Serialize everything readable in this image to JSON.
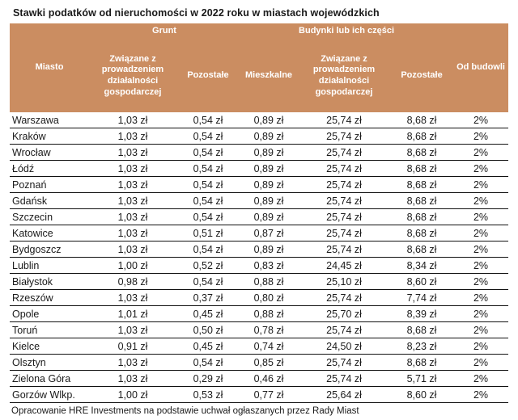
{
  "title": "Stawki podatków od nieruchomości w 2022 roku w miastach wojewódzkich",
  "footer": "Opracowanie HRE Investments na podstawie uchwał ogłaszanych przez Rady Miast",
  "colors": {
    "header_bg": "#cb8d61",
    "header_text": "#ffffff",
    "row_line": "#111111",
    "body_text": "#1a1a1a"
  },
  "table": {
    "group_headers": [
      "Grunt",
      "Budynki lub ich części"
    ],
    "columns": [
      "Miasto",
      "Związane z prowadzeniem działalności gospodarczej",
      "Pozostałe",
      "Mieszkalne",
      "Związane z prowadzeniem działalności gospodarczej",
      "Pozostałe",
      "Od budowli"
    ],
    "rows": [
      {
        "city": "Warszawa",
        "values": [
          "1,03 zł",
          "0,54 zł",
          "0,89 zł",
          "25,74 zł",
          "8,68 zł",
          "2%"
        ]
      },
      {
        "city": "Kraków",
        "values": [
          "1,03 zł",
          "0,54 zł",
          "0,89 zł",
          "25,74 zł",
          "8,68 zł",
          "2%"
        ]
      },
      {
        "city": "Wrocław",
        "values": [
          "1,03 zł",
          "0,54 zł",
          "0,89 zł",
          "25,74 zł",
          "8,68 zł",
          "2%"
        ]
      },
      {
        "city": "Łódź",
        "values": [
          "1,03 zł",
          "0,54 zł",
          "0,89 zł",
          "25,74 zł",
          "8,68 zł",
          "2%"
        ]
      },
      {
        "city": "Poznań",
        "values": [
          "1,03 zł",
          "0,54 zł",
          "0,89 zł",
          "25,74 zł",
          "8,68 zł",
          "2%"
        ]
      },
      {
        "city": "Gdańsk",
        "values": [
          "1,03 zł",
          "0,54 zł",
          "0,89 zł",
          "25,74 zł",
          "8,68 zł",
          "2%"
        ]
      },
      {
        "city": "Szczecin",
        "values": [
          "1,03 zł",
          "0,54 zł",
          "0,89 zł",
          "25,74 zł",
          "8,68 zł",
          "2%"
        ]
      },
      {
        "city": "Katowice",
        "values": [
          "1,03 zł",
          "0,51 zł",
          "0,87 zł",
          "25,74 zł",
          "8,68 zł",
          "2%"
        ]
      },
      {
        "city": "Bydgoszcz",
        "values": [
          "1,03 zł",
          "0,54 zł",
          "0,89 zł",
          "25,74 zł",
          "8,68 zł",
          "2%"
        ]
      },
      {
        "city": "Lublin",
        "values": [
          "1,00 zł",
          "0,52 zł",
          "0,83 zł",
          "24,45 zł",
          "8,34 zł",
          "2%"
        ]
      },
      {
        "city": "Białystok",
        "values": [
          "0,98 zł",
          "0,54 zł",
          "0,88 zł",
          "25,10 zł",
          "8,60 zł",
          "2%"
        ]
      },
      {
        "city": "Rzeszów",
        "values": [
          "1,03 zł",
          "0,37 zł",
          "0,80 zł",
          "25,74 zł",
          "7,74 zł",
          "2%"
        ]
      },
      {
        "city": "Opole",
        "values": [
          "1,01 zł",
          "0,45 zł",
          "0,88 zł",
          "25,70 zł",
          "8,39 zł",
          "2%"
        ]
      },
      {
        "city": "Toruń",
        "values": [
          "1,03 zł",
          "0,50 zł",
          "0,78 zł",
          "25,74 zł",
          "8,68 zł",
          "2%"
        ]
      },
      {
        "city": "Kielce",
        "values": [
          "0,91 zł",
          "0,45 zł",
          "0,74 zł",
          "24,50 zł",
          "8,23 zł",
          "2%"
        ]
      },
      {
        "city": "Olsztyn",
        "values": [
          "1,03 zł",
          "0,54 zł",
          "0,85 zł",
          "25,74 zł",
          "8,68 zł",
          "2%"
        ]
      },
      {
        "city": "Zielona Góra",
        "values": [
          "1,03 zł",
          "0,29 zł",
          "0,46 zł",
          "25,74 zł",
          "5,71 zł",
          "2%"
        ]
      },
      {
        "city": "Gorzów Wlkp.",
        "values": [
          "1,00 zł",
          "0,53 zł",
          "0,77 zł",
          "25,64 zł",
          "8,60 zł",
          "2%"
        ]
      }
    ]
  },
  "chart_data": {
    "type": "table",
    "title": "Stawki podatków od nieruchomości w 2022 roku w miastach wojewódzkich",
    "column_groups": [
      {
        "label": "",
        "span": 1
      },
      {
        "label": "Grunt",
        "span": 2
      },
      {
        "label": "Budynki lub ich części",
        "span": 3
      },
      {
        "label": "",
        "span": 1
      }
    ],
    "columns": [
      "Miasto",
      "Grunt – Związane z prowadzeniem działalności gospodarczej",
      "Grunt – Pozostałe",
      "Budynki – Mieszkalne",
      "Budynki – Związane z prowadzeniem działalności gospodarczej",
      "Budynki – Pozostałe",
      "Od budowli"
    ],
    "rows": [
      [
        "Warszawa",
        "1,03 zł",
        "0,54 zł",
        "0,89 zł",
        "25,74 zł",
        "8,68 zł",
        "2%"
      ],
      [
        "Kraków",
        "1,03 zł",
        "0,54 zł",
        "0,89 zł",
        "25,74 zł",
        "8,68 zł",
        "2%"
      ],
      [
        "Wrocław",
        "1,03 zł",
        "0,54 zł",
        "0,89 zł",
        "25,74 zł",
        "8,68 zł",
        "2%"
      ],
      [
        "Łódź",
        "1,03 zł",
        "0,54 zł",
        "0,89 zł",
        "25,74 zł",
        "8,68 zł",
        "2%"
      ],
      [
        "Poznań",
        "1,03 zł",
        "0,54 zł",
        "0,89 zł",
        "25,74 zł",
        "8,68 zł",
        "2%"
      ],
      [
        "Gdańsk",
        "1,03 zł",
        "0,54 zł",
        "0,89 zł",
        "25,74 zł",
        "8,68 zł",
        "2%"
      ],
      [
        "Szczecin",
        "1,03 zł",
        "0,54 zł",
        "0,89 zł",
        "25,74 zł",
        "8,68 zł",
        "2%"
      ],
      [
        "Katowice",
        "1,03 zł",
        "0,51 zł",
        "0,87 zł",
        "25,74 zł",
        "8,68 zł",
        "2%"
      ],
      [
        "Bydgoszcz",
        "1,03 zł",
        "0,54 zł",
        "0,89 zł",
        "25,74 zł",
        "8,68 zł",
        "2%"
      ],
      [
        "Lublin",
        "1,00 zł",
        "0,52 zł",
        "0,83 zł",
        "24,45 zł",
        "8,34 zł",
        "2%"
      ],
      [
        "Białystok",
        "0,98 zł",
        "0,54 zł",
        "0,88 zł",
        "25,10 zł",
        "8,60 zł",
        "2%"
      ],
      [
        "Rzeszów",
        "1,03 zł",
        "0,37 zł",
        "0,80 zł",
        "25,74 zł",
        "7,74 zł",
        "2%"
      ],
      [
        "Opole",
        "1,01 zł",
        "0,45 zł",
        "0,88 zł",
        "25,70 zł",
        "8,39 zł",
        "2%"
      ],
      [
        "Toruń",
        "1,03 zł",
        "0,50 zł",
        "0,78 zł",
        "25,74 zł",
        "8,68 zł",
        "2%"
      ],
      [
        "Kielce",
        "0,91 zł",
        "0,45 zł",
        "0,74 zł",
        "24,50 zł",
        "8,23 zł",
        "2%"
      ],
      [
        "Olsztyn",
        "1,03 zł",
        "0,54 zł",
        "0,85 zł",
        "25,74 zł",
        "8,68 zł",
        "2%"
      ],
      [
        "Zielona Góra",
        "1,03 zł",
        "0,29 zł",
        "0,46 zł",
        "25,74 zł",
        "5,71 zł",
        "2%"
      ],
      [
        "Gorzów Wlkp.",
        "1,00 zł",
        "0,53 zł",
        "0,77 zł",
        "25,64 zł",
        "8,60 zł",
        "2%"
      ]
    ],
    "source_note": "Opracowanie HRE Investments na podstawie uchwał ogłaszanych przez Rady Miast"
  }
}
